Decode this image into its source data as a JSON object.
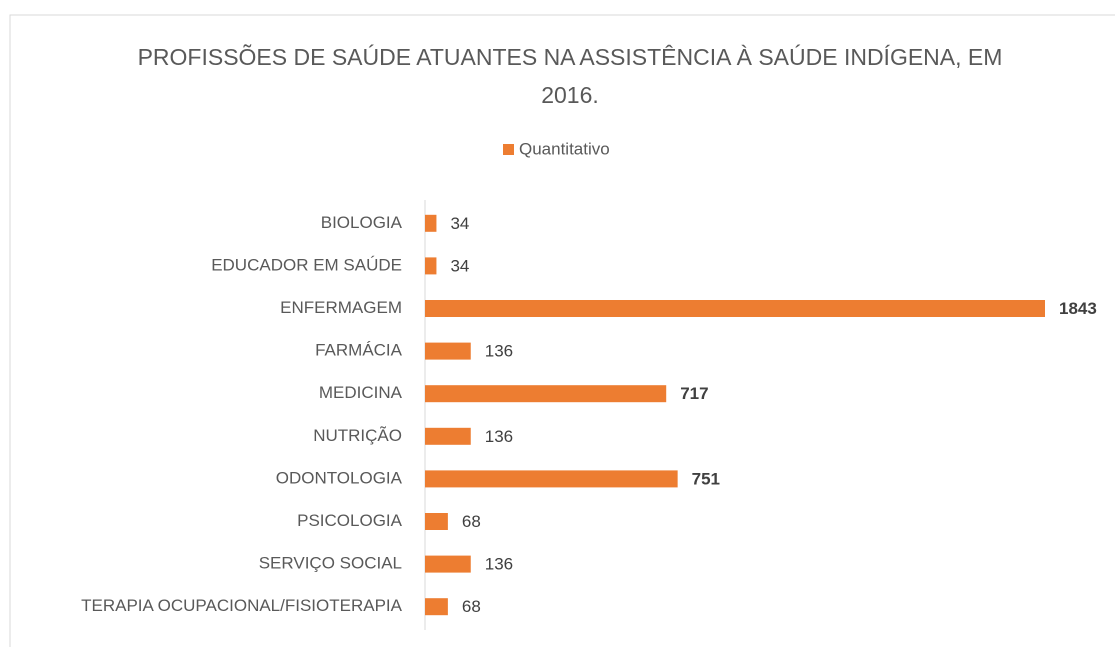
{
  "chart_data": {
    "type": "barh",
    "title": "PROFISSÕES DE SAÚDE ATUANTES NA ASSISTÊNCIA À SAÚDE INDÍGENA, EM 2016.",
    "categories": [
      "BIOLOGIA",
      "EDUCADOR EM SAÚDE",
      "ENFERMAGEM",
      "FARMÁCIA",
      "MEDICINA",
      "NUTRIÇÃO",
      "ODONTOLOGIA",
      "PSICOLOGIA",
      "SERVIÇO SOCIAL",
      "TERAPIA OCUPACIONAL/FISIOTERAPIA"
    ],
    "series": [
      {
        "name": "Quantitativo",
        "color": "#ed7d31",
        "values": [
          34,
          34,
          1843,
          136,
          717,
          136,
          751,
          68,
          136,
          68
        ]
      }
    ],
    "value_label_bold": [
      false,
      false,
      true,
      false,
      true,
      false,
      true,
      false,
      false,
      false
    ],
    "legend": "top"
  }
}
